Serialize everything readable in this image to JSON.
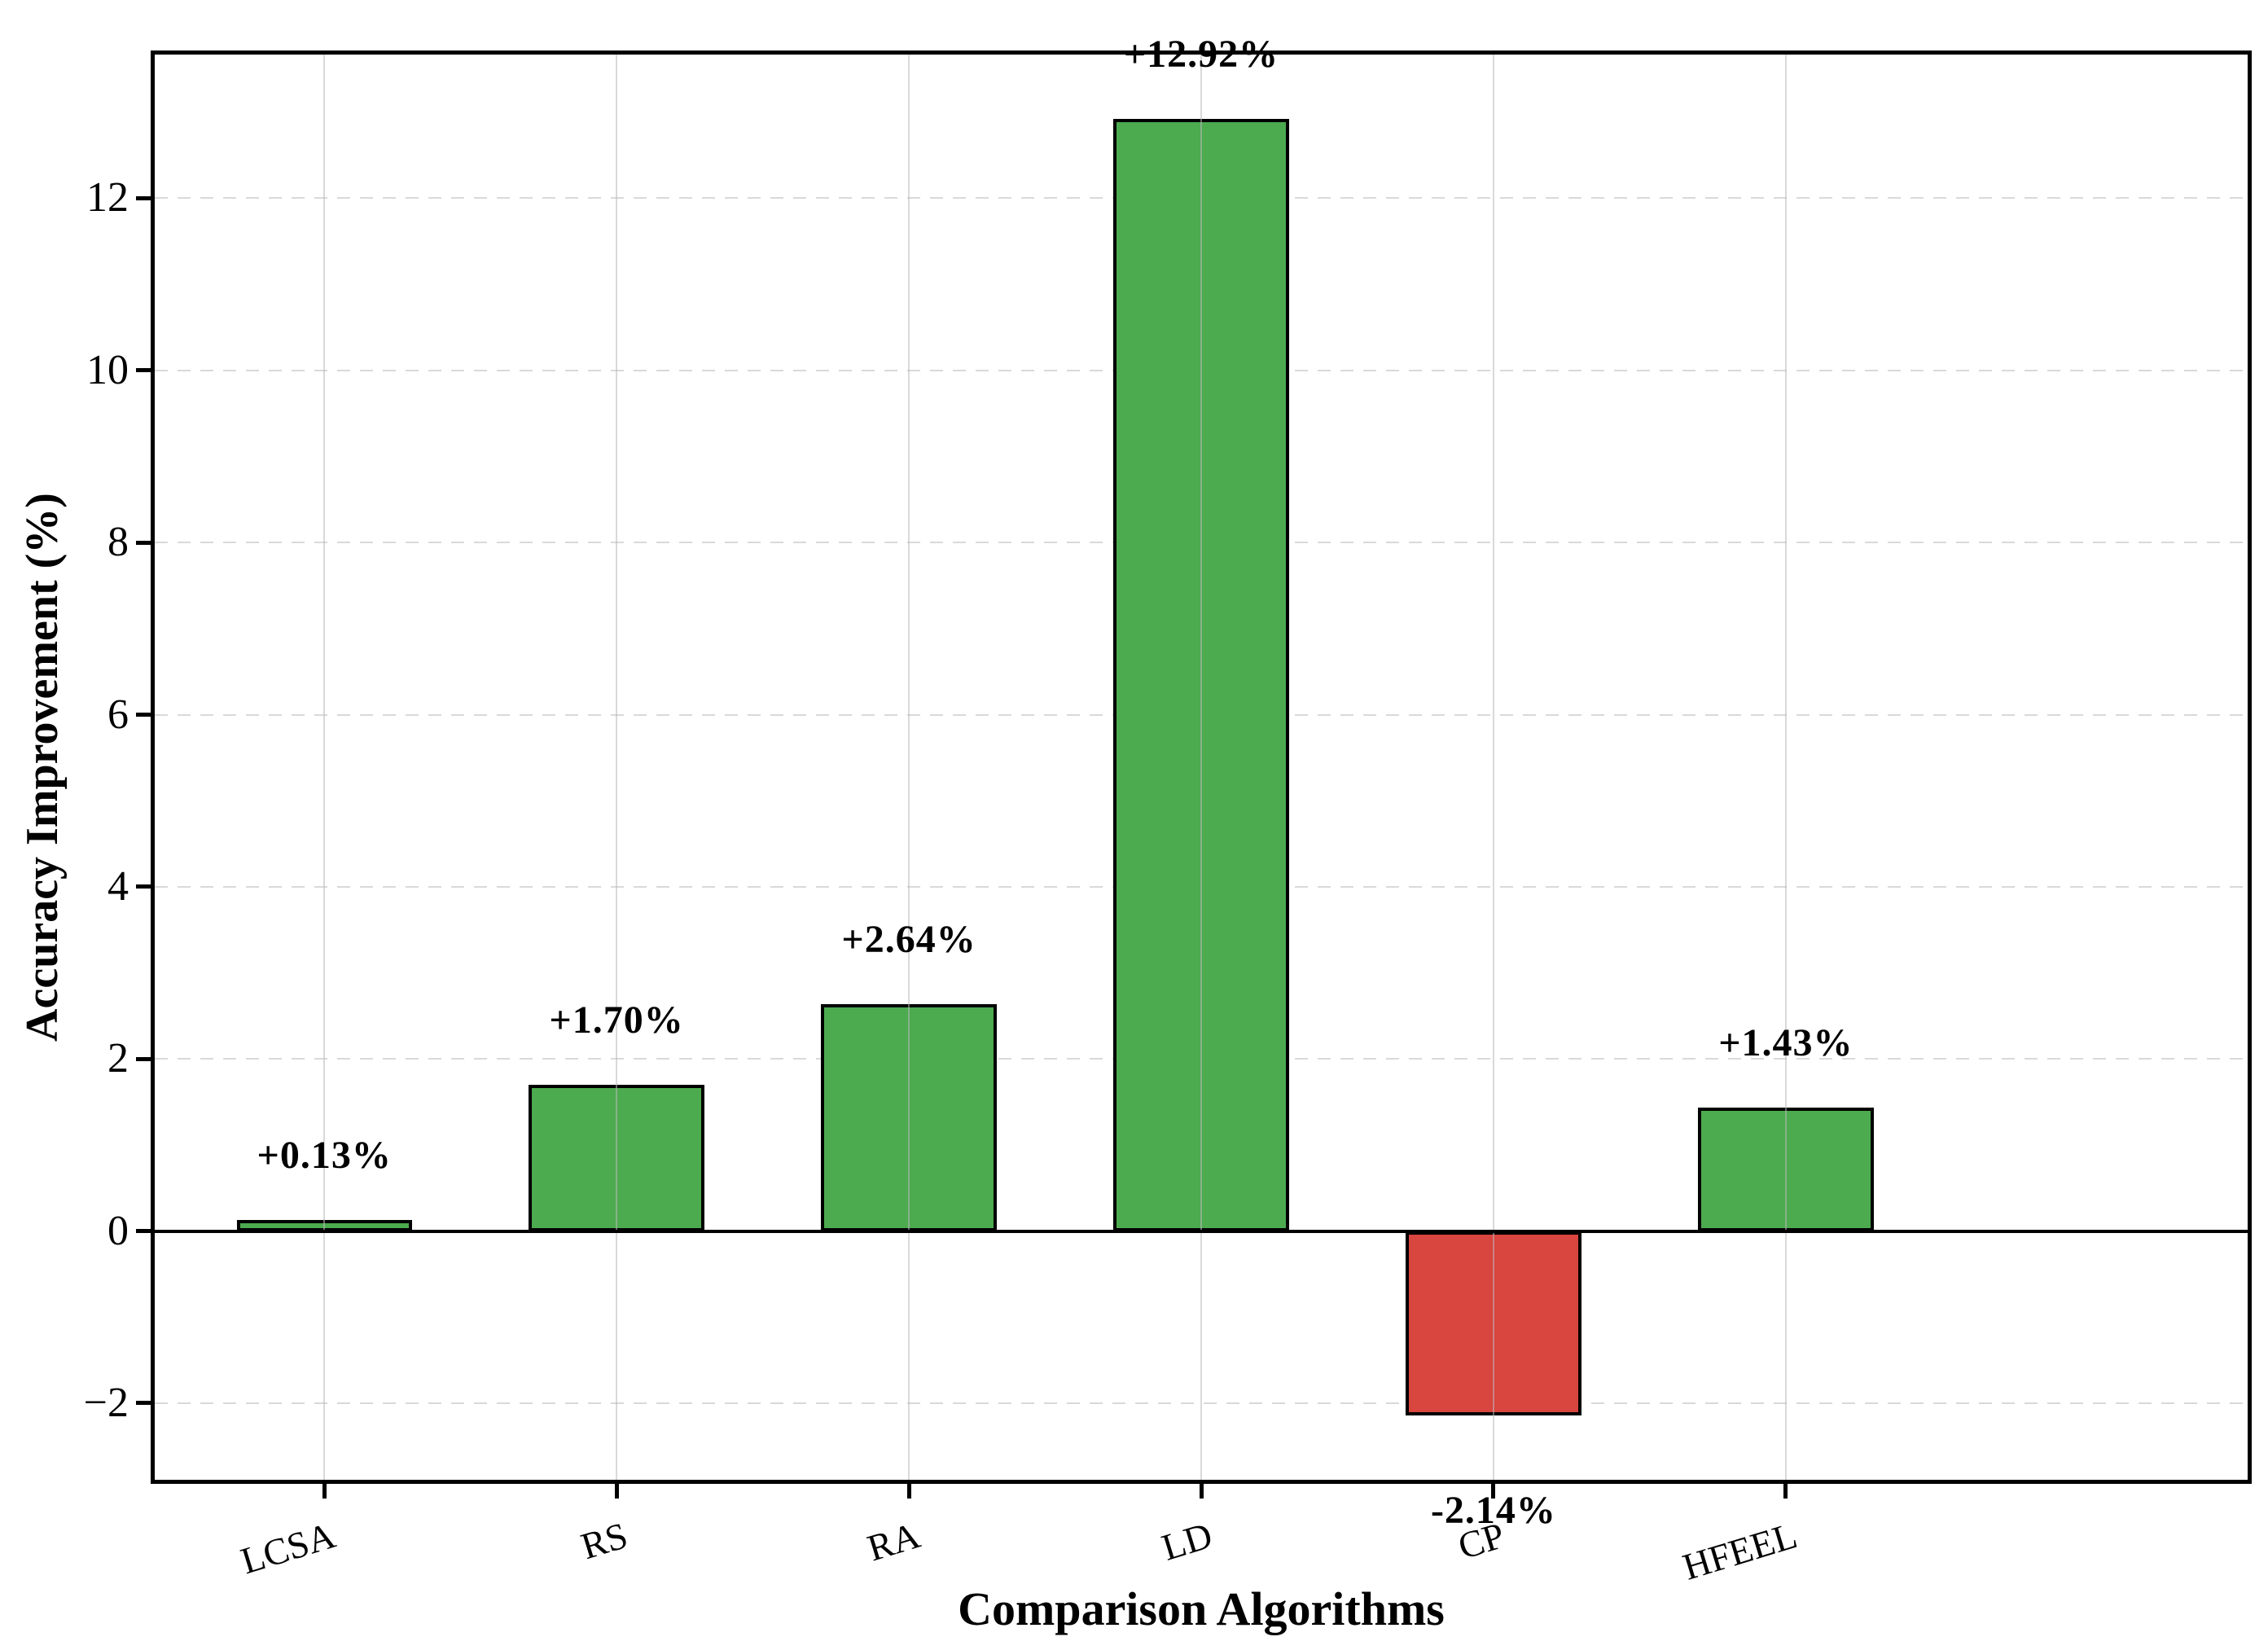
{
  "chart_data": {
    "type": "bar",
    "title": "",
    "xlabel": "Comparison Algorithms",
    "ylabel": "Accuracy Improvement (%)",
    "categories": [
      "LCSA",
      "RS",
      "RA",
      "LD",
      "CP",
      "HFEEL"
    ],
    "values": [
      0.13,
      1.7,
      2.64,
      12.92,
      -2.14,
      1.43
    ],
    "bar_labels": [
      "+0.13%",
      "+1.70%",
      "+2.64%",
      "+12.92%",
      "-2.14%",
      "+1.43%"
    ],
    "bar_colors": [
      "#4caa4f",
      "#4caa4f",
      "#4caa4f",
      "#4caa4f",
      "#d9453f",
      "#4caa4f"
    ],
    "positive_color": "#4caa4f",
    "negative_color": "#d9453f",
    "bar_edge_color": "#000000",
    "zero_line_color": "#000000",
    "grid_color": "#d9d9d9",
    "ylim": [
      -2.89,
      13.67
    ],
    "yticks": [
      -2,
      0,
      2,
      4,
      6,
      8,
      10,
      12
    ],
    "ytick_labels": [
      "−2",
      "0",
      "2",
      "4",
      "6",
      "8",
      "10",
      "12"
    ],
    "grid": {
      "horizontal": "dashed",
      "vertical": "solid"
    },
    "legend": null,
    "bar_width_ratio": 0.6
  }
}
